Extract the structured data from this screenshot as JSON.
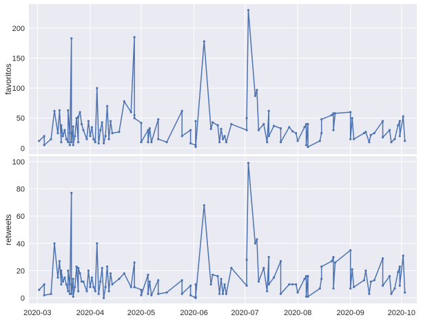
{
  "chart_data": [
    {
      "type": "line",
      "ylabel": "favoritos",
      "xlabel": "",
      "ylim": [
        -10,
        240
      ],
      "yticks": [
        0,
        50,
        100,
        150,
        200
      ],
      "xlim": [
        "2020-02-25",
        "2020-10-10"
      ],
      "xticks": [
        "2020-03",
        "2020-04",
        "2020-05",
        "2020-06",
        "2020-07",
        "2020-08",
        "2020-09",
        "2020-10"
      ],
      "grid": true,
      "color": "#4c72b0",
      "series": [
        {
          "name": "",
          "points": [
            [
              "2020-03-02",
              12
            ],
            [
              "2020-03-05",
              20
            ],
            [
              "2020-03-05",
              5
            ],
            [
              "2020-03-09",
              15
            ],
            [
              "2020-03-11",
              62
            ],
            [
              "2020-03-13",
              25
            ],
            [
              "2020-03-14",
              63
            ],
            [
              "2020-03-15",
              10
            ],
            [
              "2020-03-15",
              38
            ],
            [
              "2020-03-16",
              20
            ],
            [
              "2020-03-17",
              30
            ],
            [
              "2020-03-18",
              15
            ],
            [
              "2020-03-19",
              10
            ],
            [
              "2020-03-19",
              63
            ],
            [
              "2020-03-20",
              25
            ],
            [
              "2020-03-20",
              5
            ],
            [
              "2020-03-21",
              183
            ],
            [
              "2020-03-21",
              10
            ],
            [
              "2020-03-22",
              36
            ],
            [
              "2020-03-22",
              5
            ],
            [
              "2020-03-23",
              20
            ],
            [
              "2020-03-24",
              50
            ],
            [
              "2020-03-25",
              10
            ],
            [
              "2020-03-25",
              52
            ],
            [
              "2020-03-26",
              60
            ],
            [
              "2020-03-27",
              40
            ],
            [
              "2020-03-28",
              30
            ],
            [
              "2020-03-30",
              15
            ],
            [
              "2020-03-31",
              45
            ],
            [
              "2020-04-01",
              20
            ],
            [
              "2020-04-02",
              35
            ],
            [
              "2020-04-03",
              15
            ],
            [
              "2020-04-04",
              10
            ],
            [
              "2020-04-05",
              100
            ],
            [
              "2020-04-06",
              8
            ],
            [
              "2020-04-07",
              30
            ],
            [
              "2020-04-08",
              43
            ],
            [
              "2020-04-09",
              8
            ],
            [
              "2020-04-10",
              20
            ],
            [
              "2020-04-11",
              70
            ],
            [
              "2020-04-12",
              15
            ],
            [
              "2020-04-13",
              45
            ],
            [
              "2020-04-14",
              25
            ],
            [
              "2020-04-18",
              27
            ],
            [
              "2020-04-21",
              78
            ],
            [
              "2020-04-25",
              60
            ],
            [
              "2020-04-27",
              185
            ],
            [
              "2020-04-27",
              55
            ],
            [
              "2020-04-27",
              50
            ],
            [
              "2020-05-01",
              42
            ],
            [
              "2020-05-01",
              10
            ],
            [
              "2020-05-05",
              30
            ],
            [
              "2020-05-05",
              10
            ],
            [
              "2020-05-06",
              33
            ],
            [
              "2020-05-07",
              10
            ],
            [
              "2020-05-11",
              48
            ],
            [
              "2020-05-11",
              15
            ],
            [
              "2020-05-16",
              10
            ],
            [
              "2020-05-25",
              62
            ],
            [
              "2020-05-25",
              20
            ],
            [
              "2020-05-30",
              30
            ],
            [
              "2020-05-30",
              8
            ],
            [
              "2020-06-02",
              5
            ],
            [
              "2020-06-02",
              45
            ],
            [
              "2020-06-02",
              2
            ],
            [
              "2020-06-07",
              178
            ],
            [
              "2020-06-11",
              32
            ],
            [
              "2020-06-12",
              43
            ],
            [
              "2020-06-15",
              38
            ],
            [
              "2020-06-16",
              10
            ],
            [
              "2020-06-17",
              32
            ],
            [
              "2020-06-18",
              15
            ],
            [
              "2020-06-19",
              20
            ],
            [
              "2020-06-20",
              10
            ],
            [
              "2020-06-23",
              40
            ],
            [
              "2020-07-02",
              30
            ],
            [
              "2020-07-02",
              50
            ],
            [
              "2020-07-03",
              230
            ],
            [
              "2020-07-07",
              87
            ],
            [
              "2020-07-08",
              97
            ],
            [
              "2020-07-09",
              30
            ],
            [
              "2020-07-12",
              40
            ],
            [
              "2020-07-14",
              10
            ],
            [
              "2020-07-15",
              62
            ],
            [
              "2020-07-15",
              20
            ],
            [
              "2020-07-18",
              37
            ],
            [
              "2020-07-22",
              33
            ],
            [
              "2020-07-22",
              10
            ],
            [
              "2020-07-27",
              35
            ],
            [
              "2020-07-29",
              28
            ],
            [
              "2020-07-31",
              25
            ],
            [
              "2020-08-01",
              12
            ],
            [
              "2020-08-05",
              35
            ],
            [
              "2020-08-06",
              40
            ],
            [
              "2020-08-06",
              5
            ],
            [
              "2020-08-07",
              40
            ],
            [
              "2020-08-07",
              2
            ],
            [
              "2020-08-14",
              12
            ],
            [
              "2020-08-15",
              25
            ],
            [
              "2020-08-15",
              48
            ],
            [
              "2020-08-21",
              55
            ],
            [
              "2020-08-22",
              58
            ],
            [
              "2020-08-22",
              30
            ],
            [
              "2020-08-23",
              58
            ],
            [
              "2020-09-01",
              60
            ],
            [
              "2020-09-01",
              15
            ],
            [
              "2020-09-02",
              50
            ],
            [
              "2020-09-03",
              15
            ],
            [
              "2020-09-09",
              25
            ],
            [
              "2020-09-10",
              27
            ],
            [
              "2020-09-12",
              10
            ],
            [
              "2020-09-13",
              22
            ],
            [
              "2020-09-15",
              25
            ],
            [
              "2020-09-20",
              45
            ],
            [
              "2020-09-20",
              18
            ],
            [
              "2020-09-24",
              30
            ],
            [
              "2020-09-25",
              10
            ],
            [
              "2020-09-27",
              15
            ],
            [
              "2020-09-29",
              38
            ],
            [
              "2020-09-30",
              45
            ],
            [
              "2020-09-30",
              20
            ],
            [
              "2020-10-02",
              53
            ],
            [
              "2020-10-03",
              12
            ]
          ]
        }
      ]
    },
    {
      "type": "line",
      "ylabel": "retweets",
      "xlabel": "",
      "ylim": [
        -4,
        104
      ],
      "yticks": [
        0,
        20,
        40,
        60,
        80,
        100
      ],
      "xlim": [
        "2020-02-25",
        "2020-10-10"
      ],
      "xticks": [
        "2020-03",
        "2020-04",
        "2020-05",
        "2020-06",
        "2020-07",
        "2020-08",
        "2020-09",
        "2020-10"
      ],
      "grid": true,
      "color": "#4c72b0",
      "series": [
        {
          "name": "",
          "points": [
            [
              "2020-03-02",
              6
            ],
            [
              "2020-03-05",
              10
            ],
            [
              "2020-03-05",
              2
            ],
            [
              "2020-03-09",
              3
            ],
            [
              "2020-03-11",
              40
            ],
            [
              "2020-03-13",
              15
            ],
            [
              "2020-03-14",
              27
            ],
            [
              "2020-03-15",
              10
            ],
            [
              "2020-03-15",
              20
            ],
            [
              "2020-03-16",
              12
            ],
            [
              "2020-03-17",
              15
            ],
            [
              "2020-03-18",
              10
            ],
            [
              "2020-03-19",
              5
            ],
            [
              "2020-03-19",
              20
            ],
            [
              "2020-03-20",
              10
            ],
            [
              "2020-03-20",
              3
            ],
            [
              "2020-03-21",
              77
            ],
            [
              "2020-03-21",
              3
            ],
            [
              "2020-03-22",
              14
            ],
            [
              "2020-03-22",
              1
            ],
            [
              "2020-03-23",
              8
            ],
            [
              "2020-03-24",
              23
            ],
            [
              "2020-03-25",
              5
            ],
            [
              "2020-03-25",
              22
            ],
            [
              "2020-03-26",
              18
            ],
            [
              "2020-03-27",
              12
            ],
            [
              "2020-03-28",
              12
            ],
            [
              "2020-03-30",
              5
            ],
            [
              "2020-03-31",
              20
            ],
            [
              "2020-04-01",
              8
            ],
            [
              "2020-04-02",
              15
            ],
            [
              "2020-04-03",
              8
            ],
            [
              "2020-04-04",
              5
            ],
            [
              "2020-04-05",
              40
            ],
            [
              "2020-04-06",
              3
            ],
            [
              "2020-04-07",
              12
            ],
            [
              "2020-04-08",
              22
            ],
            [
              "2020-04-09",
              0
            ],
            [
              "2020-04-10",
              8
            ],
            [
              "2020-04-11",
              23
            ],
            [
              "2020-04-12",
              5
            ],
            [
              "2020-04-13",
              18
            ],
            [
              "2020-04-14",
              10
            ],
            [
              "2020-04-18",
              14
            ],
            [
              "2020-04-21",
              18
            ],
            [
              "2020-04-25",
              8
            ],
            [
              "2020-04-27",
              26
            ],
            [
              "2020-04-27",
              8
            ],
            [
              "2020-04-27",
              8
            ],
            [
              "2020-05-01",
              6
            ],
            [
              "2020-05-01",
              2
            ],
            [
              "2020-05-05",
              17
            ],
            [
              "2020-05-05",
              3
            ],
            [
              "2020-05-06",
              12
            ],
            [
              "2020-05-07",
              2
            ],
            [
              "2020-05-11",
              13
            ],
            [
              "2020-05-11",
              3
            ],
            [
              "2020-05-16",
              4
            ],
            [
              "2020-05-25",
              13
            ],
            [
              "2020-05-25",
              3
            ],
            [
              "2020-05-30",
              9
            ],
            [
              "2020-05-30",
              2
            ],
            [
              "2020-06-02",
              0
            ],
            [
              "2020-06-02",
              10
            ],
            [
              "2020-06-02",
              1
            ],
            [
              "2020-06-07",
              68
            ],
            [
              "2020-06-11",
              10
            ],
            [
              "2020-06-12",
              17
            ],
            [
              "2020-06-15",
              16
            ],
            [
              "2020-06-16",
              3
            ],
            [
              "2020-06-17",
              14
            ],
            [
              "2020-06-18",
              3
            ],
            [
              "2020-06-19",
              10
            ],
            [
              "2020-06-20",
              3
            ],
            [
              "2020-06-23",
              22
            ],
            [
              "2020-07-02",
              9
            ],
            [
              "2020-07-02",
              28
            ],
            [
              "2020-07-03",
              99
            ],
            [
              "2020-07-07",
              40
            ],
            [
              "2020-07-08",
              43
            ],
            [
              "2020-07-09",
              12
            ],
            [
              "2020-07-12",
              22
            ],
            [
              "2020-07-14",
              5
            ],
            [
              "2020-07-15",
              30
            ],
            [
              "2020-07-15",
              10
            ],
            [
              "2020-07-18",
              15
            ],
            [
              "2020-07-22",
              27
            ],
            [
              "2020-07-22",
              3
            ],
            [
              "2020-07-27",
              10
            ],
            [
              "2020-07-29",
              10
            ],
            [
              "2020-07-31",
              10
            ],
            [
              "2020-08-01",
              4
            ],
            [
              "2020-08-05",
              14
            ],
            [
              "2020-08-06",
              16
            ],
            [
              "2020-08-06",
              1
            ],
            [
              "2020-08-07",
              16
            ],
            [
              "2020-08-07",
              1
            ],
            [
              "2020-08-14",
              7
            ],
            [
              "2020-08-15",
              14
            ],
            [
              "2020-08-15",
              23
            ],
            [
              "2020-08-21",
              27
            ],
            [
              "2020-08-22",
              30
            ],
            [
              "2020-08-22",
              7
            ],
            [
              "2020-08-23",
              26
            ],
            [
              "2020-09-01",
              35
            ],
            [
              "2020-09-01",
              7
            ],
            [
              "2020-09-02",
              21
            ],
            [
              "2020-09-03",
              8
            ],
            [
              "2020-09-09",
              13
            ],
            [
              "2020-09-10",
              20
            ],
            [
              "2020-09-12",
              3
            ],
            [
              "2020-09-13",
              12
            ],
            [
              "2020-09-15",
              13
            ],
            [
              "2020-09-20",
              29
            ],
            [
              "2020-09-20",
              9
            ],
            [
              "2020-09-24",
              16
            ],
            [
              "2020-09-25",
              3
            ],
            [
              "2020-09-27",
              7
            ],
            [
              "2020-09-29",
              19
            ],
            [
              "2020-09-30",
              23
            ],
            [
              "2020-09-30",
              9
            ],
            [
              "2020-10-02",
              31
            ],
            [
              "2020-10-03",
              4
            ]
          ]
        }
      ]
    }
  ]
}
